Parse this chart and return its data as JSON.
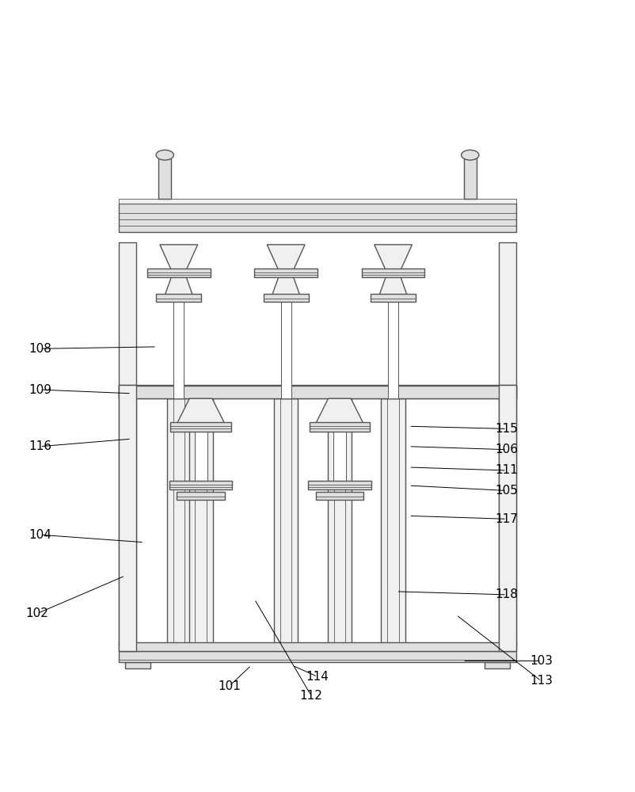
{
  "bg_color": "#ffffff",
  "lc": "#555555",
  "lw": 1.0,
  "tlw": 0.6,
  "fig_width": 8.02,
  "fig_height": 10.0,
  "annotations": {
    "101": {
      "lp": [
        0.36,
        0.04
      ],
      "le": [
        0.395,
        0.073
      ]
    },
    "102": {
      "lp": [
        0.055,
        0.155
      ],
      "le": [
        0.195,
        0.215
      ]
    },
    "103": {
      "lp": [
        0.855,
        0.08
      ],
      "le": [
        0.73,
        0.08
      ]
    },
    "104": {
      "lp": [
        0.06,
        0.28
      ],
      "le": [
        0.225,
        0.268
      ]
    },
    "105": {
      "lp": [
        0.8,
        0.35
      ],
      "le": [
        0.645,
        0.358
      ]
    },
    "106": {
      "lp": [
        0.8,
        0.415
      ],
      "le": [
        0.645,
        0.42
      ]
    },
    "108": {
      "lp": [
        0.06,
        0.575
      ],
      "le": [
        0.245,
        0.578
      ]
    },
    "109": {
      "lp": [
        0.06,
        0.51
      ],
      "le": [
        0.205,
        0.504
      ]
    },
    "111": {
      "lp": [
        0.8,
        0.382
      ],
      "le": [
        0.645,
        0.387
      ]
    },
    "112": {
      "lp": [
        0.49,
        0.025
      ],
      "le": [
        0.4,
        0.178
      ]
    },
    "113": {
      "lp": [
        0.855,
        0.048
      ],
      "le": [
        0.72,
        0.153
      ]
    },
    "114": {
      "lp": [
        0.5,
        0.055
      ],
      "le": [
        0.46,
        0.073
      ]
    },
    "115": {
      "lp": [
        0.8,
        0.448
      ],
      "le": [
        0.645,
        0.452
      ]
    },
    "116": {
      "lp": [
        0.06,
        0.42
      ],
      "le": [
        0.205,
        0.432
      ]
    },
    "117": {
      "lp": [
        0.8,
        0.305
      ],
      "le": [
        0.645,
        0.31
      ]
    },
    "118": {
      "lp": [
        0.8,
        0.185
      ],
      "le": [
        0.625,
        0.19
      ]
    }
  }
}
